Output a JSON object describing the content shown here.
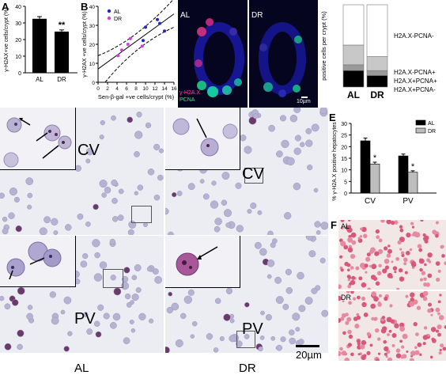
{
  "panels": {
    "A": {
      "label": "A",
      "chart_data": {
        "type": "bar",
        "categories": [
          "AL",
          "DR"
        ],
        "values": [
          32.5,
          24.8
        ],
        "errors": [
          1.3,
          1.0
        ],
        "ylabel": "γ-H2AX+ve cells/crypt (%)",
        "ylim": [
          0,
          40
        ],
        "yticks": [
          "0",
          "10",
          "20",
          "30",
          "40"
        ],
        "annotation": "**",
        "bar_color": "#000000"
      }
    },
    "B": {
      "label": "B",
      "chart_data": {
        "type": "scatter",
        "xlabel": "Sen-β-gal +ve cells/crypt (%)",
        "ylabel": "γ-H2AX +ve cells/crypt (%)",
        "xlim": [
          0,
          16
        ],
        "ylim": [
          0,
          40
        ],
        "xticks": [
          "0",
          "2",
          "4",
          "6",
          "8",
          "10",
          "12",
          "14",
          "16"
        ],
        "yticks": [
          "0",
          "10",
          "20",
          "30",
          "40"
        ],
        "series": [
          {
            "name": "AL",
            "color": "#2323c8",
            "x": [
              10,
              12.5,
              13,
              9.5,
              14
            ],
            "y": [
              29,
              33,
              31,
              22,
              27
            ]
          },
          {
            "name": "DR",
            "color": "#d63cd6",
            "x": [
              4.2,
              5,
              6.3,
              6.8,
              9.3
            ],
            "y": [
              14,
              17,
              20,
              23,
              19
            ]
          }
        ],
        "fit_line": {
          "x": [
            0,
            16
          ],
          "y": [
            7,
            36
          ]
        },
        "grid": false,
        "legend": "top-left"
      }
    },
    "C": {
      "label": "C",
      "image_labels": [
        "AL",
        "DR"
      ],
      "channel_labels": [
        "γ-H2A.X",
        "PCNA"
      ],
      "scale_bar": "10µm"
    },
    "C_chart": {
      "chart_data": {
        "type": "bar",
        "stacked": true,
        "categories": [
          "AL",
          "DR"
        ],
        "ylabel": "positive cells per crypt (%)",
        "ylim": [
          0,
          100
        ],
        "series": [
          {
            "name": "H2A.X+PCNA-",
            "color": "#000000",
            "values": [
              20,
              14
            ]
          },
          {
            "name": "H2A.X+PCNA+",
            "color": "#9a9a9a",
            "values": [
              7,
              6
            ]
          },
          {
            "name": "H2A.X-PCNA+",
            "color": "#c8c8c8",
            "values": [
              24,
              17
            ]
          },
          {
            "name": "H2A.X-PCNA-",
            "color": "#ffffff",
            "values": [
              49,
              63
            ]
          }
        ],
        "legend_labels": [
          "H2A.X-PCNA-",
          "H2A.X-PCNA+",
          "H2A.X+PCNA+",
          "H2A.X+PCNA-"
        ]
      }
    },
    "D": {
      "label": "D",
      "zone_labels": [
        "CV",
        "CV",
        "PV",
        "PV"
      ],
      "columns": [
        "AL",
        "DR"
      ],
      "scale_bar": "20µm"
    },
    "E": {
      "label": "E",
      "chart_data": {
        "type": "bar",
        "categories": [
          "CV",
          "PV"
        ],
        "series": [
          {
            "name": "AL",
            "color": "#000000",
            "values": [
              22.5,
              16
            ],
            "errors": [
              1.2,
              0.8
            ]
          },
          {
            "name": "DR",
            "color": "#bdbdbd",
            "values": [
              12.5,
              9
            ],
            "errors": [
              0.8,
              0.6
            ]
          }
        ],
        "ylabel": "% γ-H2A.X positive hepatocytes",
        "ylim": [
          0,
          30
        ],
        "yticks": [
          "0",
          "5",
          "10",
          "15",
          "20",
          "25",
          "30"
        ],
        "annotation": "*",
        "legend": "top-right"
      }
    },
    "F": {
      "label": "F",
      "image_labels": [
        "AL",
        "DR"
      ]
    }
  }
}
